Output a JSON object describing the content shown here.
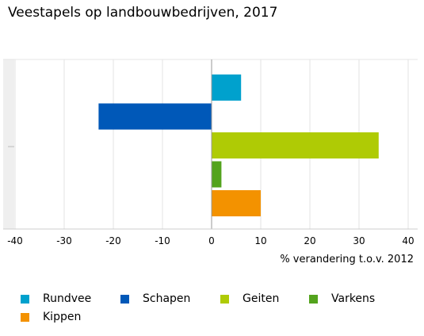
{
  "chart_data": {
    "type": "bar",
    "orientation": "horizontal",
    "title": "Veestapels op landbouwbedrijven, 2017",
    "xlabel": "% verandering t.o.v. 2012",
    "ylabel": "",
    "xlim": [
      -40,
      40
    ],
    "xticks": [
      -40,
      -30,
      -20,
      -10,
      0,
      10,
      20,
      30,
      40
    ],
    "grid": "vertical",
    "legend_position": "bottom",
    "series": [
      {
        "name": "Rundvee",
        "value": 6,
        "color": "#00a1cd"
      },
      {
        "name": "Schapen",
        "value": -23,
        "color": "#0058b8"
      },
      {
        "name": "Geiten",
        "value": 34,
        "color": "#afcb05"
      },
      {
        "name": "Varkens",
        "value": 2,
        "color": "#53a31d"
      },
      {
        "name": "Kippen",
        "value": 10,
        "color": "#f39200"
      }
    ]
  }
}
